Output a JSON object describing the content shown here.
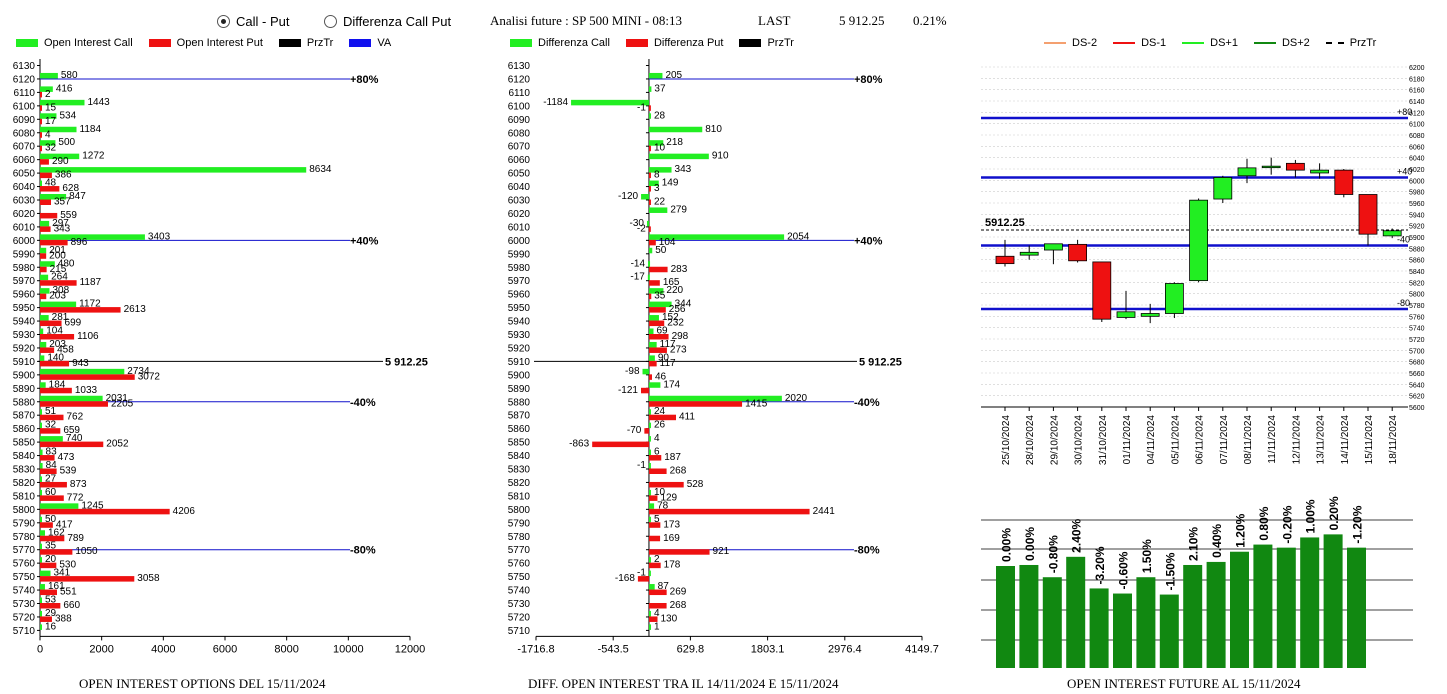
{
  "header": {
    "radio_call_put": "Call - Put",
    "radio_diff": "Differenza Call Put",
    "analisi": "Analisi future : SP 500 MINI - 08:13",
    "last_label": "LAST",
    "last_value": "5 912.25",
    "last_pct": "0.21%"
  },
  "legend1": {
    "oi_call": "Open Interest Call",
    "oi_put": "Open Interest Put",
    "przr": "PrzTr",
    "va": "VA"
  },
  "legend2": {
    "diff_call": "Differenza Call",
    "diff_put": "Differenza Put",
    "przr": "PrzTr"
  },
  "legend3": {
    "ds_m2": "DS-2",
    "ds_m1": "DS-1",
    "ds_p1": "DS+1",
    "ds_p2": "DS+2",
    "przr": "PrzTr"
  },
  "captions": {
    "c1": "OPEN INTEREST OPTIONS DEL 15/11/2024",
    "c2": "DIFF. OPEN INTEREST TRA IL 14/11/2024 E 15/11/2024",
    "c3": "OPEN INTEREST FUTURE AL 15/11/2024"
  },
  "colors": {
    "call": "#22ee22",
    "put": "#ee1111",
    "blue": "#1010cc",
    "fut_bar": "#118811"
  },
  "chart_data": [
    {
      "type": "bar",
      "orientation": "horizontal",
      "strikes": [
        6130,
        6120,
        6110,
        6100,
        6090,
        6080,
        6070,
        6060,
        6050,
        6040,
        6030,
        6020,
        6010,
        6000,
        5990,
        5980,
        5970,
        5960,
        5950,
        5940,
        5930,
        5920,
        5910,
        5900,
        5890,
        5880,
        5870,
        5860,
        5850,
        5840,
        5830,
        5820,
        5810,
        5800,
        5790,
        5780,
        5770,
        5760,
        5750,
        5740,
        5730,
        5720,
        5710
      ],
      "series": [
        {
          "name": "Open Interest Call",
          "values": [
            null,
            580,
            416,
            1443,
            534,
            1184,
            500,
            1272,
            8634,
            48,
            847,
            null,
            297,
            3403,
            201,
            480,
            264,
            308,
            1172,
            281,
            104,
            203,
            140,
            2734,
            184,
            2031,
            51,
            32,
            740,
            83,
            84,
            27,
            60,
            1245,
            50,
            162,
            35,
            20,
            341,
            161,
            53,
            29,
            16
          ]
        },
        {
          "name": "Open Interest Put",
          "values": [
            null,
            null,
            2,
            15,
            17,
            4,
            32,
            290,
            386,
            628,
            357,
            559,
            343,
            896,
            200,
            215,
            1187,
            203,
            2613,
            699,
            1106,
            458,
            943,
            3072,
            1033,
            2205,
            762,
            659,
            2052,
            473,
            539,
            873,
            772,
            4206,
            417,
            789,
            1050,
            530,
            3058,
            551,
            660,
            388,
            null
          ]
        }
      ],
      "level_lines": [
        {
          "strike": 6120,
          "label": "+80%"
        },
        {
          "strike": 6000,
          "label": "+40%"
        },
        {
          "strike": 5880,
          "label": "-40%"
        },
        {
          "strike": 5770,
          "label": "-80%"
        }
      ],
      "price_line": {
        "strike": 5910,
        "label": "5 912.25"
      },
      "xticks": [
        "0",
        "2000",
        "4000",
        "6000",
        "8000",
        "10000",
        "12000"
      ],
      "xlim": [
        0,
        12000
      ],
      "title": "OPEN INTEREST OPTIONS DEL 15/11/2024"
    },
    {
      "type": "bar",
      "orientation": "horizontal",
      "strikes": [
        6130,
        6120,
        6110,
        6100,
        6090,
        6080,
        6070,
        6060,
        6050,
        6040,
        6030,
        6020,
        6010,
        6000,
        5990,
        5980,
        5970,
        5960,
        5950,
        5940,
        5930,
        5920,
        5910,
        5900,
        5890,
        5880,
        5870,
        5860,
        5850,
        5840,
        5830,
        5820,
        5810,
        5800,
        5790,
        5780,
        5770,
        5760,
        5750,
        5740,
        5730,
        5720,
        5710
      ],
      "series": [
        {
          "name": "Differenza Call",
          "values": [
            null,
            205,
            37,
            -1184,
            28,
            810,
            218,
            910,
            343,
            149,
            -120,
            279,
            -30,
            2054,
            50,
            -14,
            -17,
            220,
            344,
            152,
            69,
            117,
            90,
            -98,
            174,
            2020,
            24,
            26,
            4,
            6,
            -1,
            null,
            10,
            78,
            5,
            null,
            null,
            2,
            -1,
            87,
            null,
            4,
            1
          ]
        },
        {
          "name": "Differenza Put",
          "values": [
            null,
            null,
            null,
            -1,
            null,
            null,
            10,
            null,
            8,
            3,
            22,
            null,
            -2,
            104,
            null,
            283,
            165,
            35,
            256,
            232,
            298,
            273,
            117,
            46,
            -121,
            1415,
            411,
            -70,
            -863,
            187,
            268,
            528,
            129,
            2441,
            173,
            169,
            921,
            178,
            -168,
            269,
            268,
            130,
            null
          ]
        }
      ],
      "level_lines": [
        {
          "strike": 6120,
          "label": "+80%"
        },
        {
          "strike": 6000,
          "label": "+40%"
        },
        {
          "strike": 5880,
          "label": "-40%"
        },
        {
          "strike": 5770,
          "label": "-80%"
        }
      ],
      "price_line": {
        "strike": 5910,
        "label": "5 912.25"
      },
      "xticks": [
        "-1716.8",
        "-543.5",
        "629.8",
        "1803.1",
        "2976.4",
        "4149.7"
      ],
      "xlim": [
        -1716.8,
        4149.7
      ],
      "title": "DIFF. OPEN INTEREST TRA IL 14/11/2024 E 15/11/2024"
    },
    {
      "type": "candlestick",
      "dates": [
        "25/10/2024",
        "28/10/2024",
        "29/10/2024",
        "30/10/2024",
        "31/10/2024",
        "01/11/2024",
        "04/11/2024",
        "05/11/2024",
        "06/11/2024",
        "07/11/2024",
        "08/11/2024",
        "11/11/2024",
        "12/11/2024",
        "13/11/2024",
        "14/11/2024",
        "15/11/2024",
        "18/11/2024"
      ],
      "candles": [
        {
          "o": 5866,
          "h": 5895,
          "l": 5848,
          "c": 5853
        },
        {
          "o": 5868,
          "h": 5885,
          "l": 5860,
          "c": 5873
        },
        {
          "o": 5877,
          "h": 5888,
          "l": 5852,
          "c": 5888
        },
        {
          "o": 5887,
          "h": 5895,
          "l": 5855,
          "c": 5858
        },
        {
          "o": 5856,
          "h": 5856,
          "l": 5750,
          "c": 5755
        },
        {
          "o": 5758,
          "h": 5805,
          "l": 5755,
          "c": 5768
        },
        {
          "o": 5760,
          "h": 5782,
          "l": 5748,
          "c": 5765
        },
        {
          "o": 5765,
          "h": 5820,
          "l": 5757,
          "c": 5818
        },
        {
          "o": 5823,
          "h": 5968,
          "l": 5820,
          "c": 5965
        },
        {
          "o": 5967,
          "h": 6008,
          "l": 5960,
          "c": 6005
        },
        {
          "o": 6008,
          "h": 6038,
          "l": 5995,
          "c": 6022
        },
        {
          "o": 6025,
          "h": 6040,
          "l": 6010,
          "c": 6025
        },
        {
          "o": 6030,
          "h": 6036,
          "l": 6005,
          "c": 6018
        },
        {
          "o": 6013,
          "h": 6030,
          "l": 6003,
          "c": 6018
        },
        {
          "o": 6018,
          "h": 6020,
          "l": 5970,
          "c": 5975
        },
        {
          "o": 5975,
          "h": 5975,
          "l": 5885,
          "c": 5905
        },
        {
          "o": 5902,
          "h": 5915,
          "l": 5898,
          "c": 5911
        }
      ],
      "hlines": [
        {
          "value": 6110,
          "label": "+80"
        },
        {
          "value": 6005,
          "label": "+40"
        },
        {
          "value": 5885,
          "label": "-40"
        },
        {
          "value": 5773,
          "label": "-80"
        }
      ],
      "last_price": 5912.25,
      "last_label": "5912.25",
      "ylim": [
        5600,
        6200
      ],
      "yticks": [
        6200,
        6180,
        6160,
        6140,
        6120,
        6100,
        6080,
        6060,
        6040,
        6020,
        6000,
        5980,
        5960,
        5940,
        5920,
        5900,
        5880,
        5860,
        5840,
        5820,
        5800,
        5780,
        5760,
        5740,
        5720,
        5700,
        5680,
        5660,
        5640,
        5620,
        5600
      ]
    },
    {
      "type": "bar",
      "labels": [
        "0.00%",
        "0.00%",
        "-0.80%",
        "2.40%",
        "-3.20%",
        "-0.60%",
        "1.50%",
        "-1.50%",
        "2.10%",
        "0.40%",
        "1.20%",
        "0.80%",
        "-0.20%",
        "1.00%",
        "0.20%",
        "-1.20%"
      ],
      "values": [
        100,
        101,
        89,
        109,
        78,
        73,
        89,
        72,
        101,
        104,
        114,
        121,
        118,
        128,
        131,
        118
      ],
      "title": "OPEN INTEREST FUTURE AL 15/11/2024"
    }
  ]
}
